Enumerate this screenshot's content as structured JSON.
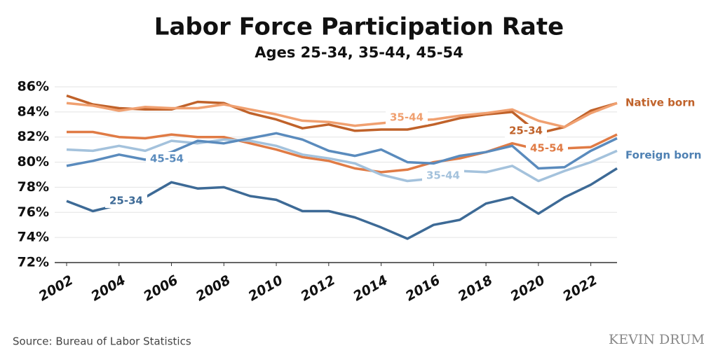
{
  "chart_data": {
    "type": "line",
    "title": "Labor Force Participation Rate",
    "subtitle": "Ages 25-34, 35-44, 45-54",
    "x": [
      2002,
      2003,
      2004,
      2005,
      2006,
      2007,
      2008,
      2009,
      2010,
      2011,
      2012,
      2013,
      2014,
      2015,
      2016,
      2017,
      2018,
      2019,
      2020,
      2021,
      2022,
      2023
    ],
    "xlim": [
      2002,
      2023
    ],
    "xticks": [
      2002,
      2004,
      2006,
      2008,
      2010,
      2012,
      2014,
      2016,
      2018,
      2020,
      2022
    ],
    "ylim": [
      72,
      86
    ],
    "yticks": [
      {
        "value": 72,
        "label": "72%"
      },
      {
        "value": 74,
        "label": "74%"
      },
      {
        "value": 76,
        "label": "76%"
      },
      {
        "value": 78,
        "label": "78%"
      },
      {
        "value": 80,
        "label": "80%"
      },
      {
        "value": 82,
        "label": "82%"
      },
      {
        "value": 84,
        "label": "84%"
      },
      {
        "value": 86,
        "label": "86%"
      }
    ],
    "grid": true,
    "groups": [
      {
        "name": "Native born",
        "color": "#c0622a",
        "series": [
          {
            "name": "25-34",
            "color": "#c0622a",
            "values": [
              85.3,
              84.6,
              84.3,
              84.2,
              84.2,
              84.8,
              84.7,
              83.9,
              83.4,
              82.7,
              83.0,
              82.5,
              82.6,
              82.6,
              83.0,
              83.5,
              83.8,
              84.0,
              82.3,
              82.8,
              84.1,
              84.7
            ]
          },
          {
            "name": "35-44",
            "color": "#f0a070",
            "values": [
              84.7,
              84.5,
              84.1,
              84.4,
              84.3,
              84.3,
              84.6,
              84.2,
              83.8,
              83.3,
              83.2,
              82.9,
              83.1,
              83.3,
              83.4,
              83.7,
              83.9,
              84.2,
              83.3,
              82.8,
              83.9,
              84.7
            ]
          },
          {
            "name": "45-54",
            "color": "#e07b45",
            "values": [
              82.4,
              82.4,
              82.0,
              81.9,
              82.2,
              82.0,
              82.0,
              81.5,
              81.0,
              80.4,
              80.1,
              79.5,
              79.2,
              79.4,
              80.0,
              80.3,
              80.8,
              81.5,
              81.0,
              81.1,
              81.2,
              82.2
            ]
          }
        ]
      },
      {
        "name": "Foreign born",
        "color": "#4f81b3",
        "series": [
          {
            "name": "25-34",
            "color": "#3d6a96",
            "values": [
              76.9,
              76.1,
              76.6,
              77.2,
              78.4,
              77.9,
              78.0,
              77.3,
              77.0,
              76.1,
              76.1,
              75.6,
              74.8,
              73.9,
              75.0,
              75.4,
              76.7,
              77.2,
              75.9,
              77.2,
              78.2,
              79.5
            ]
          },
          {
            "name": "35-44",
            "color": "#a4c2dc",
            "values": [
              81.0,
              80.9,
              81.3,
              80.9,
              81.7,
              81.5,
              81.8,
              81.7,
              81.3,
              80.6,
              80.3,
              79.9,
              79.0,
              78.5,
              78.7,
              79.3,
              79.2,
              79.7,
              78.5,
              79.3,
              80.0,
              80.9
            ]
          },
          {
            "name": "45-54",
            "color": "#5a8bbd",
            "values": [
              79.7,
              80.1,
              80.6,
              80.2,
              80.8,
              81.7,
              81.5,
              81.9,
              82.3,
              81.8,
              80.9,
              80.5,
              81.0,
              80.0,
              79.9,
              80.5,
              80.8,
              81.3,
              79.5,
              79.6,
              80.9,
              81.9
            ]
          }
        ]
      }
    ],
    "source": "Source: Bureau of Labor Statistics",
    "logo": "KEVIN DRUM"
  }
}
